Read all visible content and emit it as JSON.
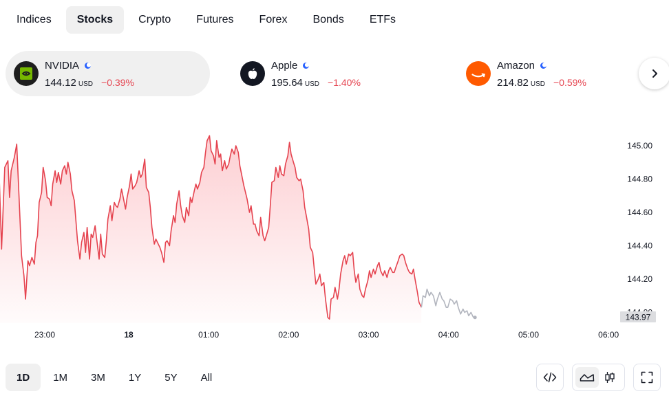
{
  "tabs": [
    {
      "label": "Indices"
    },
    {
      "label": "Stocks"
    },
    {
      "label": "Crypto"
    },
    {
      "label": "Futures"
    },
    {
      "label": "Forex"
    },
    {
      "label": "Bonds"
    },
    {
      "label": "ETFs"
    }
  ],
  "active_tab": "Stocks",
  "tickers": [
    {
      "name": "NVIDIA",
      "price": "144.12",
      "currency": "USD",
      "change": "−0.39%",
      "icon": "nvidia-logo",
      "color": "#1e1e1e"
    },
    {
      "name": "Apple",
      "price": "195.64",
      "currency": "USD",
      "change": "−1.40%",
      "icon": "apple-logo",
      "color": "#131722"
    },
    {
      "name": "Amazon",
      "price": "214.82",
      "currency": "USD",
      "change": "−0.59%",
      "icon": "amazon-logo",
      "color": "#ff5a00"
    }
  ],
  "ranges": [
    {
      "label": "1D"
    },
    {
      "label": "1M"
    },
    {
      "label": "3M"
    },
    {
      "label": "1Y"
    },
    {
      "label": "5Y"
    },
    {
      "label": "All"
    }
  ],
  "active_range": "1D",
  "colors": {
    "negative": "#e5434f",
    "after_hours": "#b2b5be",
    "last_price_badge": "#dcdde0"
  },
  "chart_data": {
    "type": "line",
    "ylim": [
      143.9,
      145.2
    ],
    "yticks": [
      "145.00",
      "144.80",
      "144.60",
      "144.40",
      "144.20",
      "144.00"
    ],
    "ytick_values": [
      145.0,
      144.8,
      144.6,
      144.4,
      144.2,
      144.0
    ],
    "xticks": [
      {
        "label": "23:00",
        "t": 22.95
      },
      {
        "label": "18",
        "t": 24.0
      },
      {
        "label": "01:00",
        "t": 25.0
      },
      {
        "label": "02:00",
        "t": 26.0
      },
      {
        "label": "03:00",
        "t": 27.0
      },
      {
        "label": "04:00",
        "t": 28.0
      },
      {
        "label": "05:00",
        "t": 29.0
      },
      {
        "label": "06:00",
        "t": 30.0
      }
    ],
    "last_price": "143.97",
    "series": [
      {
        "style": "regular",
        "points": [
          [
            22.38,
            144.83
          ],
          [
            22.41,
            144.38
          ],
          [
            22.45,
            144.87
          ],
          [
            22.49,
            144.91
          ],
          [
            22.51,
            144.69
          ],
          [
            22.53,
            144.85
          ],
          [
            22.57,
            144.93
          ],
          [
            22.6,
            145.01
          ],
          [
            22.63,
            144.68
          ],
          [
            22.66,
            144.34
          ],
          [
            22.69,
            144.22
          ],
          [
            22.71,
            144.08
          ],
          [
            22.74,
            144.31
          ],
          [
            22.76,
            144.28
          ],
          [
            22.79,
            144.33
          ],
          [
            22.82,
            144.29
          ],
          [
            22.84,
            144.42
          ],
          [
            22.86,
            144.46
          ],
          [
            22.88,
            144.66
          ],
          [
            22.91,
            144.72
          ],
          [
            22.93,
            144.87
          ],
          [
            22.96,
            144.79
          ],
          [
            22.98,
            144.69
          ],
          [
            23.01,
            144.68
          ],
          [
            23.03,
            144.64
          ],
          [
            23.05,
            144.77
          ],
          [
            23.08,
            144.85
          ],
          [
            23.1,
            144.78
          ],
          [
            23.12,
            144.84
          ],
          [
            23.15,
            144.77
          ],
          [
            23.17,
            144.85
          ],
          [
            23.2,
            144.88
          ],
          [
            23.22,
            144.83
          ],
          [
            23.24,
            144.9
          ],
          [
            23.27,
            144.83
          ],
          [
            23.29,
            144.73
          ],
          [
            23.32,
            144.67
          ],
          [
            23.34,
            144.55
          ],
          [
            23.36,
            144.43
          ],
          [
            23.39,
            144.32
          ],
          [
            23.41,
            144.42
          ],
          [
            23.44,
            144.48
          ],
          [
            23.46,
            144.36
          ],
          [
            23.48,
            144.51
          ],
          [
            23.51,
            144.32
          ],
          [
            23.53,
            144.47
          ],
          [
            23.55,
            144.45
          ],
          [
            23.58,
            144.52
          ],
          [
            23.6,
            144.44
          ],
          [
            23.63,
            144.32
          ],
          [
            23.65,
            144.47
          ],
          [
            23.67,
            144.35
          ],
          [
            23.7,
            144.33
          ],
          [
            23.72,
            144.43
          ],
          [
            23.74,
            144.56
          ],
          [
            23.77,
            144.64
          ],
          [
            23.79,
            144.55
          ],
          [
            23.82,
            144.66
          ],
          [
            23.84,
            144.64
          ],
          [
            23.86,
            144.63
          ],
          [
            23.89,
            144.68
          ],
          [
            23.91,
            144.74
          ],
          [
            23.94,
            144.67
          ],
          [
            23.96,
            144.62
          ],
          [
            23.98,
            144.69
          ],
          [
            24.01,
            144.76
          ],
          [
            24.03,
            144.83
          ],
          [
            24.05,
            144.74
          ],
          [
            24.08,
            144.76
          ],
          [
            24.1,
            144.78
          ],
          [
            24.13,
            144.85
          ],
          [
            24.15,
            144.81
          ],
          [
            24.17,
            144.83
          ],
          [
            24.2,
            144.92
          ],
          [
            24.22,
            144.75
          ],
          [
            24.25,
            144.72
          ],
          [
            24.27,
            144.63
          ],
          [
            24.29,
            144.51
          ],
          [
            24.32,
            144.41
          ],
          [
            24.34,
            144.44
          ],
          [
            24.36,
            144.42
          ],
          [
            24.39,
            144.39
          ],
          [
            24.41,
            144.36
          ],
          [
            24.44,
            144.3
          ],
          [
            24.46,
            144.42
          ],
          [
            24.48,
            144.43
          ],
          [
            24.51,
            144.4
          ],
          [
            24.53,
            144.49
          ],
          [
            24.56,
            144.58
          ],
          [
            24.58,
            144.54
          ],
          [
            24.6,
            144.65
          ],
          [
            24.63,
            144.73
          ],
          [
            24.65,
            144.64
          ],
          [
            24.67,
            144.58
          ],
          [
            24.7,
            144.54
          ],
          [
            24.72,
            144.63
          ],
          [
            24.75,
            144.58
          ],
          [
            24.77,
            144.69
          ],
          [
            24.79,
            144.66
          ],
          [
            24.82,
            144.73
          ],
          [
            24.84,
            144.77
          ],
          [
            24.86,
            144.74
          ],
          [
            24.89,
            144.78
          ],
          [
            24.91,
            144.84
          ],
          [
            24.94,
            144.87
          ],
          [
            24.96,
            144.96
          ],
          [
            24.98,
            145.03
          ],
          [
            25.01,
            145.06
          ],
          [
            25.03,
            144.97
          ],
          [
            25.06,
            144.94
          ],
          [
            25.08,
            144.89
          ],
          [
            25.1,
            145.03
          ],
          [
            25.13,
            144.93
          ],
          [
            25.15,
            144.95
          ],
          [
            25.17,
            144.85
          ],
          [
            25.2,
            144.91
          ],
          [
            25.22,
            144.86
          ],
          [
            25.25,
            144.89
          ],
          [
            25.27,
            144.94
          ],
          [
            25.29,
            144.98
          ],
          [
            25.32,
            144.95
          ],
          [
            25.34,
            145.0
          ],
          [
            25.37,
            144.96
          ],
          [
            25.39,
            144.88
          ],
          [
            25.41,
            144.83
          ],
          [
            25.44,
            144.76
          ],
          [
            25.46,
            144.72
          ],
          [
            25.48,
            144.68
          ],
          [
            25.51,
            144.6
          ],
          [
            25.53,
            144.64
          ],
          [
            25.56,
            144.53
          ],
          [
            25.58,
            144.53
          ],
          [
            25.6,
            144.49
          ],
          [
            25.63,
            144.46
          ],
          [
            25.65,
            144.57
          ],
          [
            25.68,
            144.46
          ],
          [
            25.7,
            144.43
          ],
          [
            25.72,
            144.46
          ],
          [
            25.75,
            144.51
          ],
          [
            25.77,
            144.64
          ],
          [
            25.79,
            144.78
          ],
          [
            25.82,
            144.79
          ],
          [
            25.84,
            144.87
          ],
          [
            25.87,
            144.81
          ],
          [
            25.89,
            144.88
          ],
          [
            25.91,
            144.83
          ],
          [
            25.94,
            144.82
          ],
          [
            25.96,
            144.89
          ],
          [
            25.99,
            144.94
          ],
          [
            26.01,
            145.02
          ],
          [
            26.03,
            144.95
          ],
          [
            26.06,
            144.9
          ],
          [
            26.08,
            144.87
          ],
          [
            26.1,
            144.81
          ],
          [
            26.13,
            144.79
          ],
          [
            26.15,
            144.8
          ],
          [
            26.18,
            144.73
          ],
          [
            26.2,
            144.63
          ],
          [
            26.22,
            144.58
          ],
          [
            26.25,
            144.5
          ],
          [
            26.27,
            144.39
          ],
          [
            26.3,
            144.36
          ],
          [
            26.32,
            144.26
          ],
          [
            26.34,
            144.17
          ],
          [
            26.37,
            144.2
          ],
          [
            26.39,
            144.23
          ],
          [
            26.41,
            144.16
          ],
          [
            26.44,
            144.18
          ],
          [
            26.46,
            144.08
          ],
          [
            26.49,
            143.97
          ],
          [
            26.51,
            143.96
          ],
          [
            26.53,
            144.08
          ],
          [
            26.56,
            144.09
          ],
          [
            26.58,
            144.15
          ],
          [
            26.61,
            144.08
          ],
          [
            26.63,
            144.14
          ],
          [
            26.65,
            144.23
          ],
          [
            26.68,
            144.31
          ],
          [
            26.7,
            144.34
          ],
          [
            26.72,
            144.29
          ],
          [
            26.75,
            144.35
          ],
          [
            26.77,
            144.34
          ],
          [
            26.8,
            144.36
          ],
          [
            26.82,
            144.25
          ],
          [
            26.84,
            144.18
          ],
          [
            26.87,
            144.23
          ],
          [
            26.89,
            144.14
          ],
          [
            26.92,
            144.1
          ],
          [
            26.94,
            144.09
          ],
          [
            26.96,
            144.14
          ],
          [
            26.99,
            144.19
          ],
          [
            27.01,
            144.25
          ],
          [
            27.03,
            144.21
          ],
          [
            27.06,
            144.26
          ],
          [
            27.08,
            144.23
          ],
          [
            27.11,
            144.28
          ],
          [
            27.13,
            144.3
          ],
          [
            27.15,
            144.25
          ],
          [
            27.18,
            144.22
          ],
          [
            27.2,
            144.25
          ],
          [
            27.23,
            144.21
          ],
          [
            27.25,
            144.25
          ],
          [
            27.27,
            144.27
          ],
          [
            27.3,
            144.24
          ],
          [
            27.32,
            144.24
          ],
          [
            27.34,
            144.27
          ],
          [
            27.37,
            144.31
          ],
          [
            27.39,
            144.34
          ],
          [
            27.42,
            144.35
          ],
          [
            27.44,
            144.34
          ],
          [
            27.46,
            144.3
          ],
          [
            27.49,
            144.26
          ],
          [
            27.51,
            144.24
          ],
          [
            27.54,
            144.23
          ],
          [
            27.56,
            144.26
          ],
          [
            27.58,
            144.2
          ],
          [
            27.61,
            144.12
          ],
          [
            27.63,
            144.06
          ],
          [
            27.66,
            144.03
          ]
        ]
      },
      {
        "style": "after_hours",
        "points": [
          [
            27.66,
            144.03
          ],
          [
            27.68,
            144.1
          ],
          [
            27.71,
            144.09
          ],
          [
            27.73,
            144.14
          ],
          [
            27.76,
            144.1
          ],
          [
            27.78,
            144.12
          ],
          [
            27.81,
            144.1
          ],
          [
            27.84,
            144.04
          ],
          [
            27.86,
            144.08
          ],
          [
            27.89,
            144.12
          ],
          [
            27.92,
            144.08
          ],
          [
            27.94,
            144.07
          ],
          [
            27.97,
            144.03
          ],
          [
            27.99,
            144.03
          ],
          [
            28.02,
            144.08
          ],
          [
            28.05,
            144.07
          ],
          [
            28.07,
            144.05
          ],
          [
            28.1,
            144.07
          ],
          [
            28.12,
            144.03
          ],
          [
            28.15,
            143.99
          ],
          [
            28.18,
            144.02
          ],
          [
            28.2,
            144.0
          ],
          [
            28.23,
            144.01
          ],
          [
            28.25,
            143.98
          ],
          [
            28.28,
            144.0
          ],
          [
            28.31,
            143.97
          ],
          [
            28.33,
            143.97
          ]
        ]
      }
    ]
  }
}
